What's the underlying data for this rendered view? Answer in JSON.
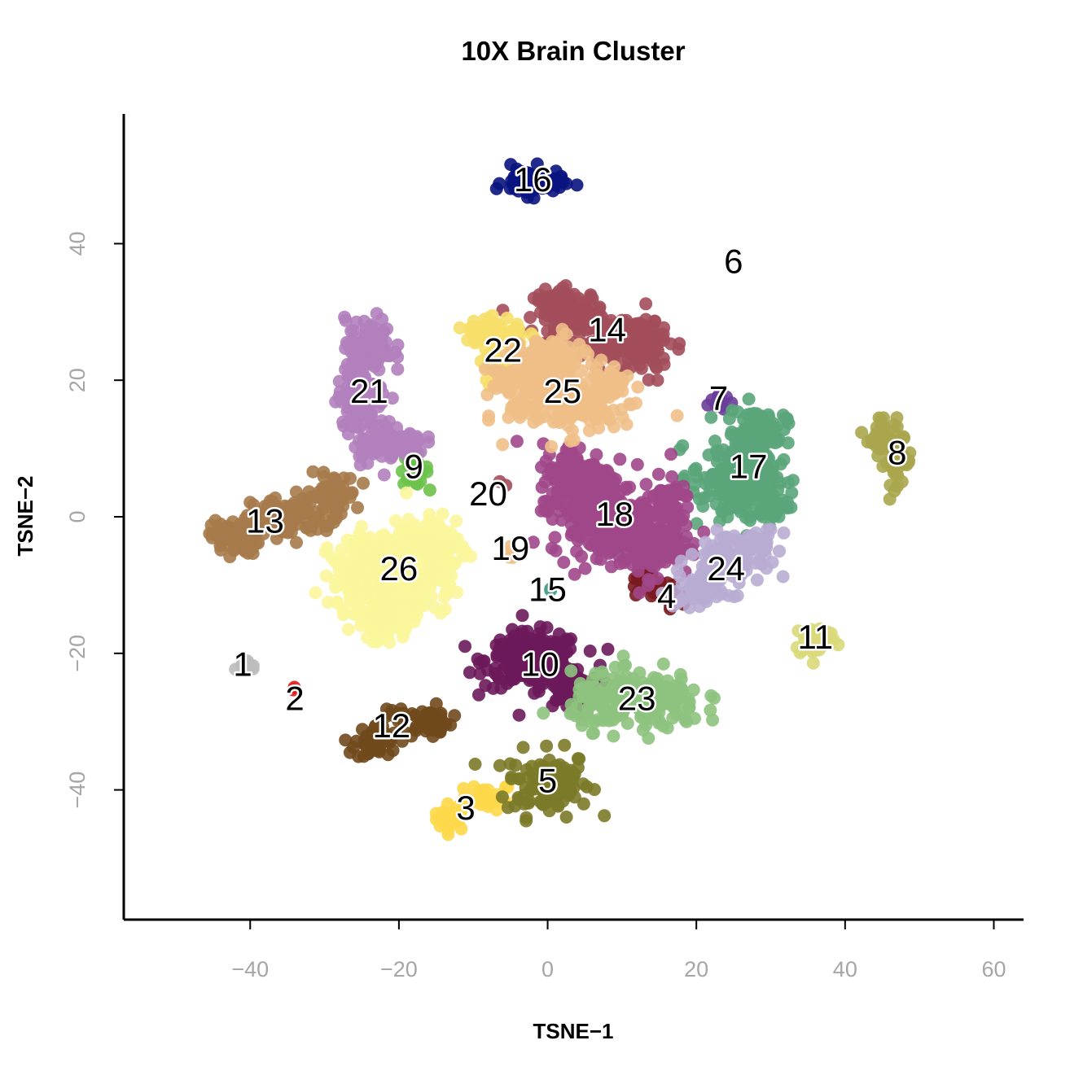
{
  "chart_data": {
    "type": "scatter",
    "title": "10X Brain Cluster",
    "xlabel": "TSNE−1",
    "ylabel": "TSNE−2",
    "xlim": [
      -57,
      64
    ],
    "ylim": [
      -59,
      59
    ],
    "xticks": [
      -40,
      -20,
      0,
      20,
      40,
      60
    ],
    "yticks": [
      -40,
      -20,
      0,
      20,
      40
    ],
    "grid": false,
    "legend": "none",
    "clusters": [
      {
        "label": "1",
        "color": "#bdbdbd",
        "lx": -41,
        "ly": -22,
        "blobs": [
          [
            -40,
            -22,
            1.2,
            0.8,
            8
          ]
        ]
      },
      {
        "label": "2",
        "color": "#e31a1c",
        "lx": -34,
        "ly": -27,
        "blobs": [
          [
            -34,
            -25,
            0.3,
            0.3,
            2
          ]
        ]
      },
      {
        "label": "3",
        "color": "#fdd84a",
        "lx": -11,
        "ly": -43,
        "blobs": [
          [
            -13,
            -44,
            1.5,
            1.2,
            25
          ],
          [
            -8,
            -41,
            2.0,
            1.2,
            25
          ]
        ]
      },
      {
        "label": "4",
        "color": "#7a1a1f",
        "lx": 16,
        "ly": -12,
        "blobs": [
          [
            13,
            -10,
            1.5,
            1.5,
            20
          ],
          [
            17,
            -12,
            1.5,
            1.5,
            15
          ]
        ]
      },
      {
        "label": "5",
        "color": "#7b7a28",
        "lx": 0,
        "ly": -39,
        "blobs": [
          [
            0,
            -39,
            3.5,
            3.0,
            110
          ]
        ]
      },
      {
        "label": "6",
        "color": "#000000",
        "lx": 25,
        "ly": 37,
        "blobs": []
      },
      {
        "label": "7",
        "color": "#6a3d9a",
        "lx": 23,
        "ly": 17,
        "blobs": [
          [
            23,
            17,
            1.2,
            1.0,
            12
          ]
        ]
      },
      {
        "label": "8",
        "color": "#aaa64e",
        "lx": 47,
        "ly": 9,
        "blobs": [
          [
            45,
            12,
            1.2,
            1.8,
            40
          ],
          [
            47,
            8,
            1.2,
            2.0,
            40
          ]
        ]
      },
      {
        "label": "9",
        "color": "#6cc24a",
        "lx": -18,
        "ly": 7,
        "blobs": [
          [
            -18,
            7,
            1.2,
            1.5,
            25
          ]
        ]
      },
      {
        "label": "10",
        "color": "#6b1a5a",
        "lx": -1,
        "ly": -22,
        "blobs": [
          [
            -2,
            -21,
            4.0,
            2.5,
            220
          ],
          [
            3,
            -25,
            2.5,
            2.0,
            80
          ]
        ]
      },
      {
        "label": "11",
        "color": "#d9d97a",
        "lx": 36,
        "ly": -18,
        "blobs": [
          [
            36,
            -18,
            1.8,
            1.5,
            45
          ]
        ]
      },
      {
        "label": "12",
        "color": "#70491c",
        "lx": -21,
        "ly": -31,
        "blobs": [
          [
            -23,
            -33,
            1.8,
            1.6,
            45
          ],
          [
            -16,
            -30,
            2.0,
            1.4,
            45
          ],
          [
            -21,
            -29,
            1.0,
            0.6,
            10
          ]
        ]
      },
      {
        "label": "13",
        "color": "#a67a4a",
        "lx": -38,
        "ly": -1,
        "blobs": [
          [
            -42,
            -3,
            2.0,
            1.6,
            90
          ],
          [
            -35,
            0,
            3.0,
            1.8,
            90
          ],
          [
            -29,
            3,
            2.0,
            2.0,
            70
          ]
        ]
      },
      {
        "label": "14",
        "color": "#a34e5b",
        "lx": 8,
        "ly": 27,
        "blobs": [
          [
            3,
            30,
            3.0,
            2.0,
            120
          ],
          [
            10,
            26,
            3.5,
            2.5,
            110
          ],
          [
            13,
            24,
            2.0,
            2.0,
            60
          ]
        ]
      },
      {
        "label": "15",
        "color": "#49a08a",
        "lx": 0,
        "ly": -11,
        "blobs": [
          [
            0,
            -11,
            0.3,
            0.3,
            2
          ]
        ]
      },
      {
        "label": "16",
        "color": "#0a1480",
        "lx": -2,
        "ly": 49,
        "blobs": [
          [
            -2,
            49,
            2.5,
            1.3,
            75
          ]
        ]
      },
      {
        "label": "17",
        "color": "#5aa57a",
        "lx": 27,
        "ly": 7,
        "blobs": [
          [
            28,
            12,
            2.5,
            2.5,
            110
          ],
          [
            25,
            6,
            3.5,
            3.0,
            140
          ],
          [
            28,
            2,
            3.0,
            2.5,
            80
          ]
        ]
      },
      {
        "label": "18",
        "color": "#a0478a",
        "lx": 9,
        "ly": 0,
        "blobs": [
          [
            4,
            6,
            3.0,
            3.0,
            150
          ],
          [
            7,
            0,
            4.0,
            3.5,
            220
          ],
          [
            13,
            -4,
            4.0,
            3.0,
            150
          ],
          [
            16,
            2,
            2.0,
            2.5,
            60
          ]
        ]
      },
      {
        "label": "19",
        "color": "#f0bf88",
        "lx": -5,
        "ly": -5,
        "blobs": [
          [
            -5,
            -5,
            0.3,
            1.2,
            4
          ]
        ]
      },
      {
        "label": "20",
        "color": "#a34e5b",
        "lx": -8,
        "ly": 3,
        "blobs": [
          [
            -6,
            5,
            0.3,
            0.3,
            2
          ]
        ]
      },
      {
        "label": "21",
        "color": "#b180bc",
        "lx": -24,
        "ly": 18,
        "blobs": [
          [
            -24,
            25,
            2.0,
            2.5,
            90
          ],
          [
            -25,
            18,
            2.0,
            3.0,
            110
          ],
          [
            -23,
            11,
            2.0,
            2.0,
            70
          ],
          [
            -19,
            11,
            1.5,
            1.0,
            25
          ]
        ]
      },
      {
        "label": "22",
        "color": "#f6df6a",
        "lx": -6,
        "ly": 24,
        "blobs": [
          [
            -7,
            27,
            2.5,
            1.5,
            70
          ],
          [
            -6,
            22,
            2.0,
            1.5,
            50
          ]
        ]
      },
      {
        "label": "23",
        "color": "#8dc37e",
        "lx": 12,
        "ly": -27,
        "blobs": [
          [
            12,
            -27,
            5.5,
            2.5,
            260
          ]
        ]
      },
      {
        "label": "24",
        "color": "#b9acd3",
        "lx": 24,
        "ly": -8,
        "blobs": [
          [
            24,
            -6,
            3.0,
            2.0,
            90
          ],
          [
            21,
            -11,
            2.5,
            1.5,
            50
          ],
          [
            28,
            -4,
            2.0,
            1.5,
            40
          ]
        ]
      },
      {
        "label": "25",
        "color": "#f0bf88",
        "lx": 2,
        "ly": 18,
        "blobs": [
          [
            0,
            23,
            3.0,
            2.0,
            110
          ],
          [
            2,
            17,
            4.5,
            3.0,
            200
          ],
          [
            -5,
            20,
            2.0,
            1.5,
            40
          ],
          [
            8,
            18,
            2.0,
            2.5,
            60
          ]
        ]
      },
      {
        "label": "26",
        "color": "#fbf69c",
        "lx": -20,
        "ly": -8,
        "blobs": [
          [
            -22,
            -9,
            4.5,
            4.0,
            320
          ],
          [
            -16,
            -5,
            3.0,
            3.5,
            140
          ],
          [
            -22,
            -15,
            2.5,
            2.0,
            60
          ]
        ]
      }
    ]
  }
}
